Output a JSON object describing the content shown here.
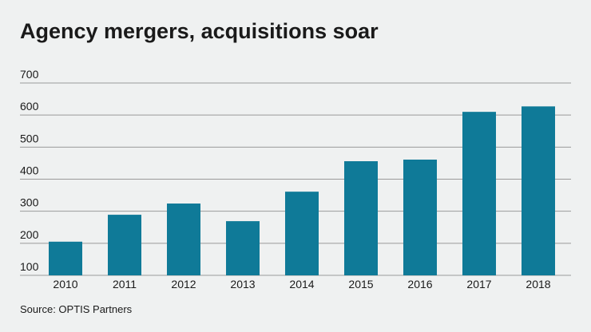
{
  "chart_data": {
    "type": "bar",
    "title": "Agency mergers, acquisitions soar",
    "categories": [
      "2010",
      "2011",
      "2012",
      "2013",
      "2014",
      "2015",
      "2016",
      "2017",
      "2018"
    ],
    "values": [
      205,
      289,
      324,
      269,
      361,
      456,
      461,
      610,
      627
    ],
    "color": "#0f7a98",
    "ylim": [
      100,
      700
    ],
    "yticks": [
      100,
      200,
      300,
      400,
      500,
      600,
      700
    ],
    "grid": true,
    "source": "Source: OPTIS Partners"
  }
}
